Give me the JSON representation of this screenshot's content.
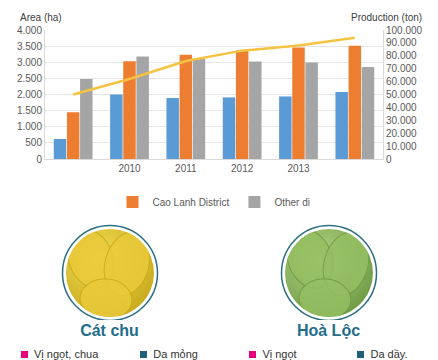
{
  "chart_data": {
    "type": "bar",
    "categories": [
      null,
      "2010",
      "2011",
      "2012",
      "2013",
      null
    ],
    "series": [
      {
        "color": "#5b9bd5",
        "values": [
          620,
          2000,
          1890,
          1910,
          1940,
          2080
        ]
      },
      {
        "name": "Cao Lanh District",
        "color": "#ed7d31",
        "values": [
          1450,
          3030,
          3230,
          3370,
          3460,
          3510
        ]
      },
      {
        "name": "Other di",
        "color": "#a5a5a5",
        "values": [
          2480,
          3180,
          3100,
          3020,
          2990,
          2850
        ]
      },
      {
        "type": "line",
        "axis": "y2",
        "color": "#f5c342",
        "values": [
          50000,
          62000,
          76000,
          84000,
          88000,
          94000
        ]
      }
    ],
    "ylabel": "Area (ha)",
    "y2label": "Production (ton)",
    "ylim": [
      0,
      4000
    ],
    "yticks": [
      0,
      500,
      {
        "value": 1000,
        "label": "1.000"
      },
      {
        "value": 1500,
        "label": "1.500"
      },
      {
        "value": 2000,
        "label": "2.000"
      },
      {
        "value": 2500,
        "label": "2.500"
      },
      {
        "value": 3000,
        "label": "3.000"
      },
      {
        "value": 3500,
        "label": "3.500"
      },
      {
        "value": 4000,
        "label": "4.000"
      }
    ],
    "y2lim": [
      0,
      100000
    ],
    "y2ticks": [
      0,
      {
        "value": 10000,
        "label": "10.000"
      },
      {
        "value": 20000,
        "label": "20.000"
      },
      {
        "value": 30000,
        "label": "30.000"
      },
      {
        "value": 40000,
        "label": "40.000"
      },
      {
        "value": 50000,
        "label": "50.000"
      },
      {
        "value": 60000,
        "label": "60.000"
      },
      {
        "value": 70000,
        "label": "70.000"
      },
      {
        "value": 80000,
        "label": "80.000"
      },
      {
        "value": 90000,
        "label": "90.000"
      },
      {
        "value": 100000,
        "label": "100.000"
      }
    ],
    "grid": true,
    "legend": "bottom"
  },
  "varieties": [
    {
      "name": "Cát chu",
      "features": [
        "Vị ngọt, chua",
        "Da mỏng"
      ]
    },
    {
      "name": "Hoà Lộc",
      "features": [
        "Vị ngọt",
        "Da dầy."
      ]
    }
  ]
}
